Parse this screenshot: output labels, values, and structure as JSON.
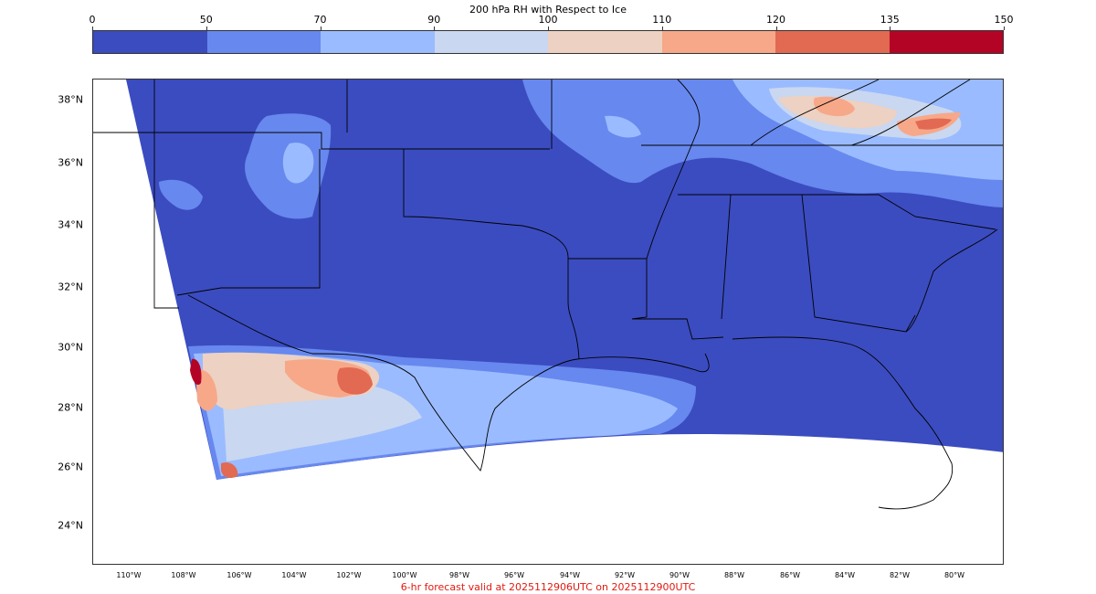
{
  "colorbar": {
    "title": "200 hPa RH with Respect to Ice",
    "ticks": [
      "0",
      "50",
      "70",
      "90",
      "100",
      "110",
      "120",
      "135",
      "150"
    ],
    "colors": [
      "#3b4cc0",
      "#6788ee",
      "#9abbff",
      "#c9d7f0",
      "#edd1c2",
      "#f7a889",
      "#e26952",
      "#b40426"
    ]
  },
  "map": {
    "lat_labels": [
      "38°N",
      "36°N",
      "34°N",
      "32°N",
      "30°N",
      "28°N",
      "26°N",
      "24°N"
    ],
    "lon_labels": [
      "110°W",
      "108°W",
      "106°W",
      "104°W",
      "102°W",
      "100°W",
      "98°W",
      "96°W",
      "94°W",
      "92°W",
      "90°W",
      "88°W",
      "86°W",
      "84°W",
      "82°W",
      "80°W"
    ]
  },
  "footer": "6-hr forecast valid at 2025112906UTC on 2025112900UTC"
}
